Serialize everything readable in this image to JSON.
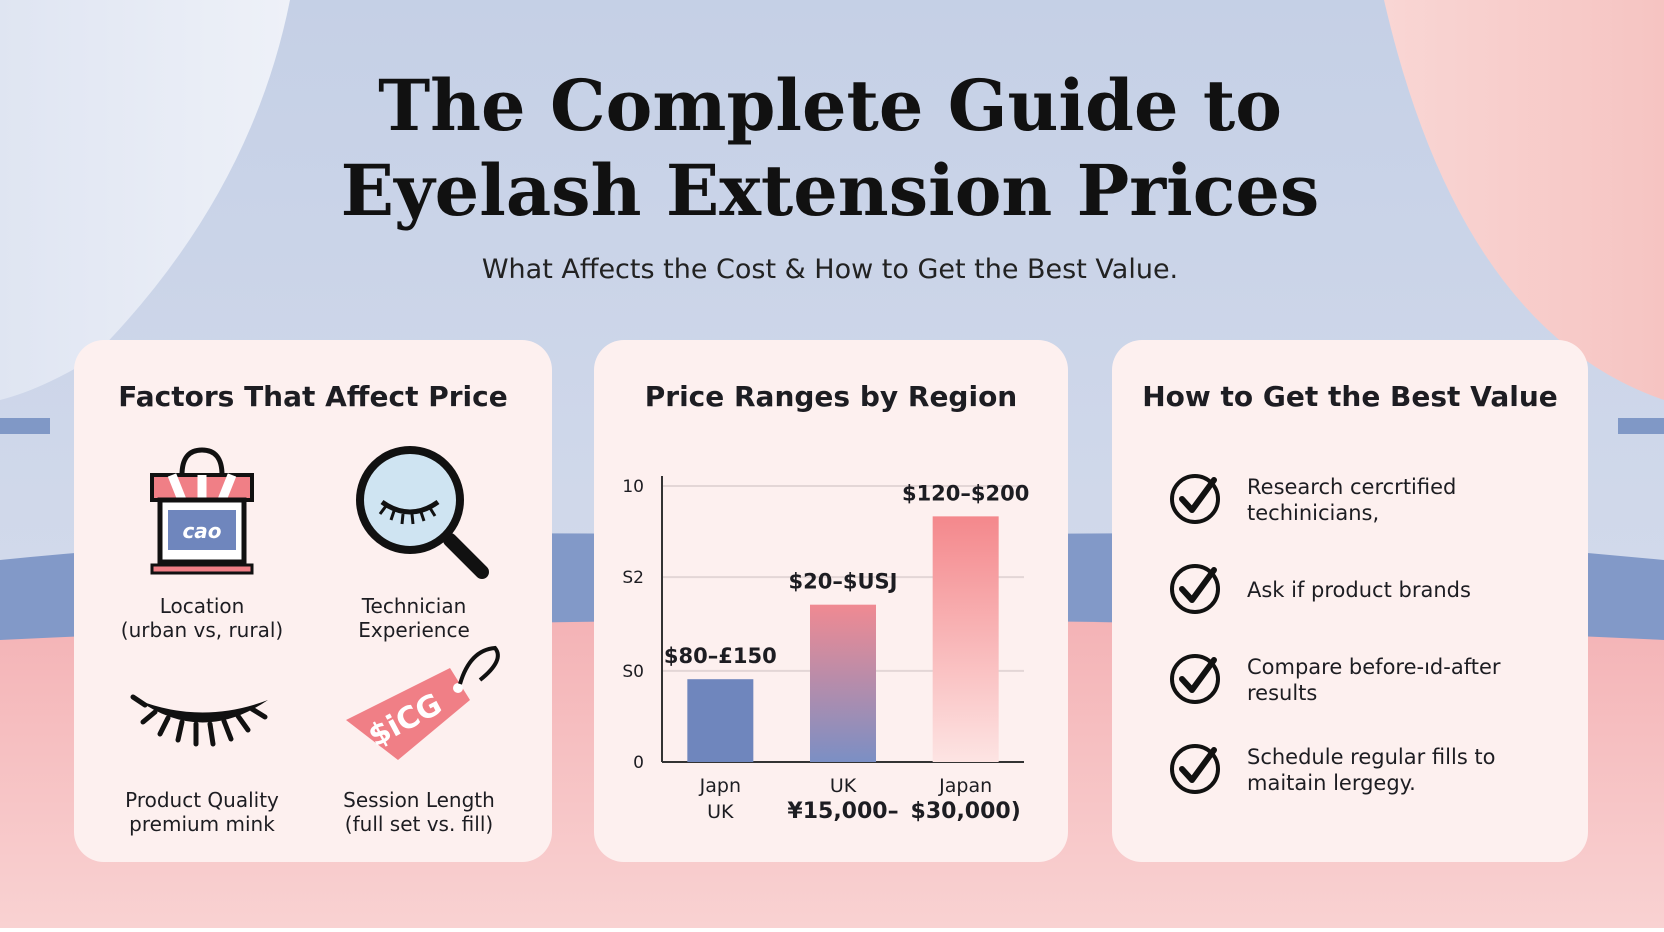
{
  "header": {
    "title_lines": [
      "The Complete Guide to",
      "Eyelash Extension Prices"
    ],
    "subtitle": "What Affects the Cost & How to Get the Best Value."
  },
  "factors": {
    "title": "Factors That Affect Price",
    "items": [
      {
        "lines": [
          "Location",
          "(urban vs, rural)"
        ],
        "icon_text": "cao"
      },
      {
        "lines": [
          "Technician",
          "Experience"
        ]
      },
      {
        "lines": [
          "Product Quality",
          "premium mink"
        ]
      },
      {
        "lines": [
          "Session Length",
          "(full set vs. fill)"
        ],
        "icon_text": "$iCG"
      }
    ]
  },
  "chart_data": {
    "type": "bar",
    "title": "Price Ranges by Region",
    "categories": [
      "Japn",
      "UK",
      "Japan"
    ],
    "sublabels": [
      "UK",
      "¥15,000–",
      "$30,000)"
    ],
    "annotations": [
      "$80–£150",
      "$20–$USJ",
      "$120–$200"
    ],
    "values": [
      3.0,
      5.7,
      8.9
    ],
    "colors": [
      "#6f86bd",
      "#f08a92",
      "#f4888c"
    ],
    "ylim": [
      0,
      10
    ],
    "yticks": [
      0,
      {
        "value": 3.3,
        "label": "S0"
      },
      {
        "value": 6.7,
        "label": "S2"
      },
      10
    ],
    "grid": true
  },
  "tips": {
    "title": "How to Get the Best Value",
    "items": [
      {
        "lines": [
          "Research cercrtified",
          "techinicians,"
        ]
      },
      {
        "lines": [
          "Ask if product brands"
        ]
      },
      {
        "lines": [
          "Compare before-ıd-after",
          "results"
        ]
      },
      {
        "lines": [
          "Schedule regular fills to",
          "maitain lergegy."
        ]
      }
    ]
  }
}
